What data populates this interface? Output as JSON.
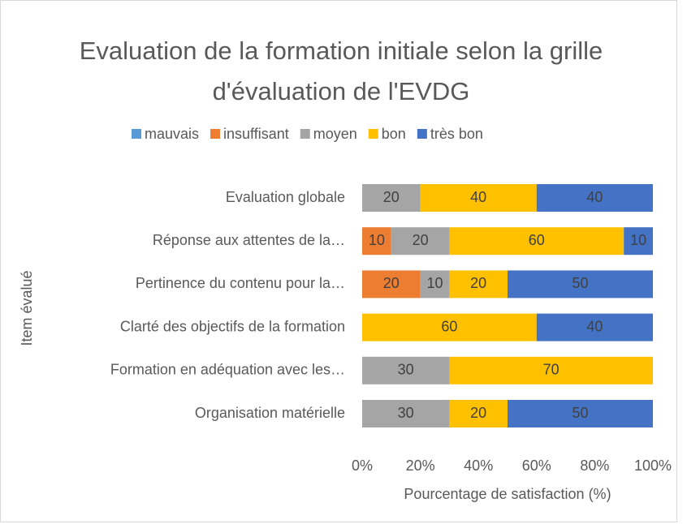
{
  "chart_data": {
    "type": "stacked_barh",
    "title": "Evaluation de la formation initiale selon la grille d'évaluation de l'EVDG",
    "xlabel": "Pourcentage de satisfaction (%)",
    "ylabel": "Item évalué",
    "categories": [
      "Evaluation globale",
      "Réponse aux attentes de la…",
      "Pertinence du contenu pour la…",
      "Clarté des objectifs de la formation",
      "Formation en adéquation avec les…",
      "Organisation matérielle"
    ],
    "series": [
      {
        "name": "mauvais",
        "color": "#5b9bd5",
        "values": [
          0,
          0,
          0,
          0,
          0,
          0
        ]
      },
      {
        "name": "insuffisant",
        "color": "#ed7d31",
        "values": [
          0,
          10,
          20,
          0,
          0,
          0
        ]
      },
      {
        "name": "moyen",
        "color": "#a5a5a5",
        "values": [
          20,
          20,
          10,
          0,
          30,
          30
        ]
      },
      {
        "name": "bon",
        "color": "#ffc000",
        "values": [
          40,
          60,
          20,
          60,
          70,
          20
        ]
      },
      {
        "name": "très bon",
        "color": "#4472c4",
        "values": [
          40,
          10,
          50,
          40,
          0,
          50
        ]
      }
    ],
    "xlim": [
      0,
      100
    ],
    "xticks": [
      {
        "value": 0,
        "label": "0%"
      },
      {
        "value": 20,
        "label": "20%"
      },
      {
        "value": 40,
        "label": "40%"
      },
      {
        "value": 60,
        "label": "60%"
      },
      {
        "value": 80,
        "label": "80%"
      },
      {
        "value": 100,
        "label": "100%"
      }
    ],
    "legend": "top",
    "grid": false
  }
}
